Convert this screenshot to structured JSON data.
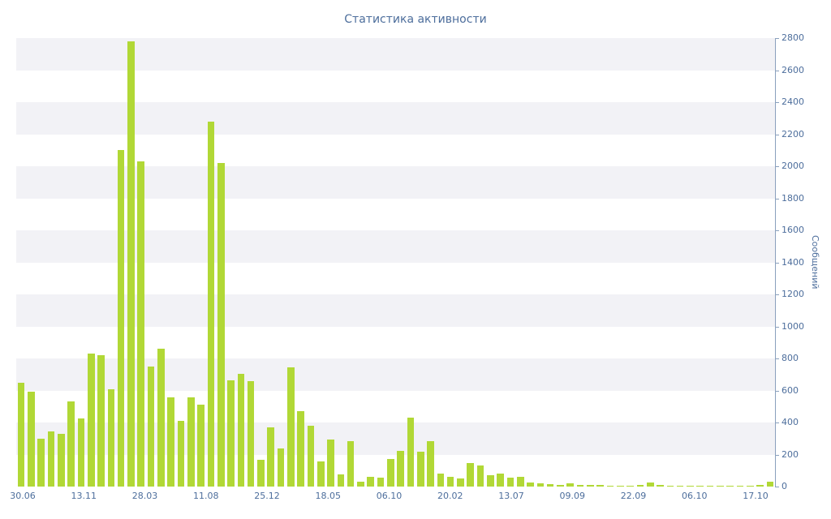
{
  "title": "Статистика активности",
  "chart_data": {
    "type": "bar",
    "title": "Статистика активности",
    "xlabel": "",
    "ylabel": "Сообщений",
    "ylim": [
      0,
      2800
    ],
    "ytick_step": 200,
    "yticks": [
      0,
      200,
      400,
      600,
      800,
      1000,
      1200,
      1400,
      1600,
      1800,
      2000,
      2200,
      2400,
      2600,
      2800
    ],
    "x_tick_labels": [
      "30.06",
      "13.11",
      "28.03",
      "11.08",
      "25.12",
      "18.05",
      "06.10",
      "20.02",
      "13.07",
      "09.09",
      "22.09",
      "06.10",
      "17.10"
    ],
    "values": [
      650,
      590,
      300,
      345,
      330,
      530,
      425,
      830,
      820,
      610,
      2100,
      2780,
      2030,
      750,
      860,
      555,
      410,
      555,
      510,
      2280,
      2020,
      665,
      705,
      660,
      165,
      370,
      240,
      745,
      470,
      380,
      155,
      295,
      75,
      285,
      30,
      60,
      55,
      170,
      225,
      430,
      220,
      285,
      80,
      60,
      50,
      145,
      130,
      70,
      80,
      55,
      60,
      25,
      20,
      15,
      12,
      20,
      12,
      10,
      8,
      6,
      5,
      5,
      8,
      25,
      12,
      6,
      5,
      4,
      4,
      5,
      4,
      4,
      4,
      5,
      8,
      30
    ],
    "legend_position": "none",
    "grid": "horizontal-bands",
    "bar_color": "#b1d836",
    "axis_color": "#8aa0bd",
    "text_color": "#4d6e9c",
    "band_colors": [
      "#ffffff",
      "#f2f2f6"
    ]
  }
}
